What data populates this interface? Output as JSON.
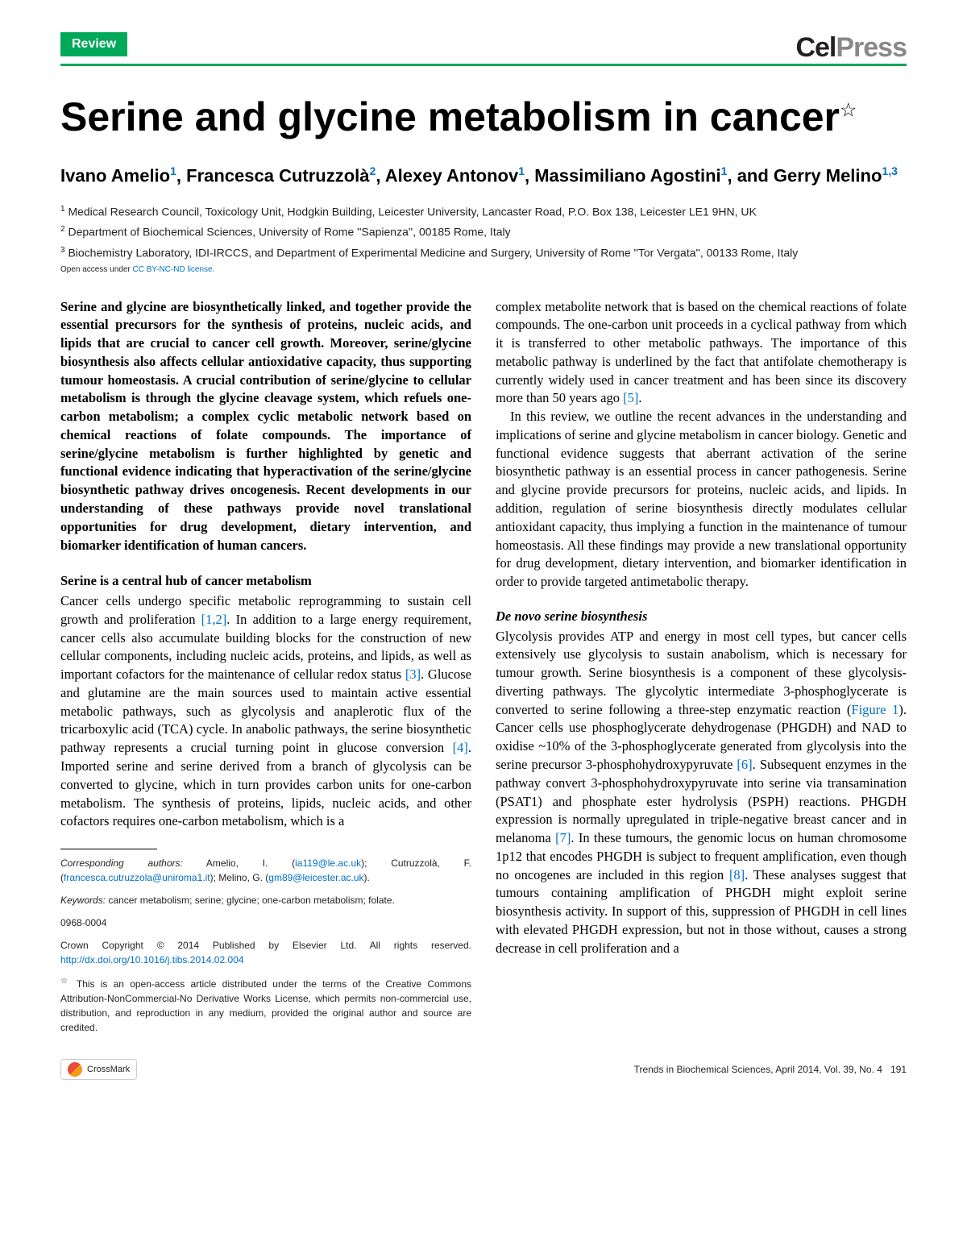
{
  "colors": {
    "accent_green": "#00a859",
    "link_blue": "#0070c0",
    "logo_grey": "#888888",
    "text": "#000000"
  },
  "header": {
    "badge": "Review",
    "logo_cell": "Cel",
    "logo_press": "Press"
  },
  "title": "Serine and glycine metabolism in cancer",
  "title_star": "☆",
  "authors_html": "Ivano Amelio<sup>1</sup>, Francesca Cutruzzolà<sup>2</sup>, Alexey Antonov<sup>1</sup>, Massimiliano Agostini<sup>1</sup>, and Gerry Melino<sup>1,3</sup>",
  "affiliations": [
    "<sup>1</sup> Medical Research Council, Toxicology Unit, Hodgkin Building, Leicester University, Lancaster Road, P.O. Box 138, Leicester LE1 9HN, UK",
    "<sup>2</sup> Department of Biochemical Sciences, University of Rome ''Sapienza'', 00185 Rome, Italy",
    "<sup>3</sup> Biochemistry Laboratory, IDI-IRCCS, and Department of Experimental Medicine and Surgery, University of Rome ''Tor Vergata'', 00133 Rome, Italy"
  ],
  "license_note_prefix": "Open access under ",
  "license_note_link": "CC BY-NC-ND license.",
  "abstract": "Serine and glycine are biosynthetically linked, and together provide the essential precursors for the synthesis of proteins, nucleic acids, and lipids that are crucial to cancer cell growth. Moreover, serine/glycine biosynthesis also affects cellular antioxidative capacity, thus supporting tumour homeostasis. A crucial contribution of serine/glycine to cellular metabolism is through the glycine cleavage system, which refuels one-carbon metabolism; a complex cyclic metabolic network based on chemical reactions of folate compounds. The importance of serine/glycine metabolism is further highlighted by genetic and functional evidence indicating that hyperactivation of the serine/glycine biosynthetic pathway drives oncogenesis. Recent developments in our understanding of these pathways provide novel translational opportunities for drug development, dietary intervention, and biomarker identification of human cancers.",
  "section1_heading": "Serine is a central hub of cancer metabolism",
  "section1_body": "Cancer cells undergo specific metabolic reprogramming to sustain cell growth and proliferation <span class=\"ref-link\">[1,2]</span>. In addition to a large energy requirement, cancer cells also accumulate building blocks for the construction of new cellular components, including nucleic acids, proteins, and lipids, as well as important cofactors for the maintenance of cellular redox status <span class=\"ref-link\">[3]</span>. Glucose and glutamine are the main sources used to maintain active essential metabolic pathways, such as glycolysis and anaplerotic flux of the tricarboxylic acid (TCA) cycle. In anabolic pathways, the serine biosynthetic pathway represents a crucial turning point in glucose conversion <span class=\"ref-link\">[4]</span>. Imported serine and serine derived from a branch of glycolysis can be converted to glycine, which in turn provides carbon units for one-carbon metabolism. The synthesis of proteins, lipids, nucleic acids, and other cofactors requires one-carbon metabolism, which is a",
  "col2_para1": "complex metabolite network that is based on the chemical reactions of folate compounds. The one-carbon unit proceeds in a cyclical pathway from which it is transferred to other metabolic pathways. The importance of this metabolic pathway is underlined by the fact that antifolate chemotherapy is currently widely used in cancer treatment and has been since its discovery more than 50 years ago <span class=\"ref-link\">[5]</span>.",
  "col2_para2": "In this review, we outline the recent advances in the understanding and implications of serine and glycine metabolism in cancer biology. Genetic and functional evidence suggests that aberrant activation of the serine biosynthetic pathway is an essential process in cancer pathogenesis. Serine and glycine provide precursors for proteins, nucleic acids, and lipids. In addition, regulation of serine biosynthesis directly modulates cellular antioxidant capacity, thus implying a function in the maintenance of tumour homeostasis. All these findings may provide a new translational opportunity for drug development, dietary intervention, and biomarker identification in order to provide targeted antimetabolic therapy.",
  "section2_heading": "De novo serine biosynthesis",
  "section2_body": "Glycolysis provides ATP and energy in most cell types, but cancer cells extensively use glycolysis to sustain anabolism, which is necessary for tumour growth. Serine biosynthesis is a component of these glycolysis-diverting pathways. The glycolytic intermediate 3-phosphoglycerate is converted to serine following a three-step enzymatic reaction (<span class=\"ref-link\">Figure 1</span>). Cancer cells use phosphoglycerate dehydrogenase (PHGDH) and NAD to oxidise ~10% of the 3-phosphoglycerate generated from glycolysis into the serine precursor 3-phosphohydroxypyruvate <span class=\"ref-link\">[6]</span>. Subsequent enzymes in the pathway convert 3-phosphohydroxypyruvate into serine via transamination (PSAT1) and phosphate ester hydrolysis (PSPH) reactions. PHGDH expression is normally upregulated in triple-negative breast cancer and in melanoma <span class=\"ref-link\">[7]</span>. In these tumours, the genomic locus on human chromosome 1p12 that encodes PHGDH is subject to frequent amplification, even though no oncogenes are included in this region <span class=\"ref-link\">[8]</span>. These analyses suggest that tumours containing amplification of PHGDH might exploit serine biosynthesis activity. In support of this, suppression of PHGDH in cell lines with elevated PHGDH expression, but not in those without, causes a strong decrease in cell proliferation and a",
  "footnotes": {
    "corresponding_label": "Corresponding authors:",
    "corresponding_text": " Amelio, I. (<span class=\"link\">ia119@le.ac.uk</span>); Cutruzzolà, F. (<span class=\"link\">francesca.cutruzzola@uniroma1.it</span>); Melino, G. (<span class=\"link\">gm89@leicester.ac.uk</span>).",
    "keywords_label": "Keywords:",
    "keywords_text": " cancer metabolism; serine; glycine; one-carbon metabolism; folate.",
    "issn": "0968-0004",
    "copyright": "Crown Copyright © 2014 Published by Elsevier Ltd. All rights reserved. <span class=\"link\">http://dx.doi.org/10.1016/j.tibs.2014.02.004</span>",
    "open_access_note": "<sup>☆</sup> This is an open-access article distributed under the terms of the Creative Commons Attribution-NonCommercial-No Derivative Works License, which permits non-commercial use, distribution, and reproduction in any medium, provided the original author and source are credited."
  },
  "page_footer": {
    "crossmark": "CrossMark",
    "citation": "Trends in Biochemical Sciences, April 2014, Vol. 39, No. 4",
    "page_number": "191"
  }
}
